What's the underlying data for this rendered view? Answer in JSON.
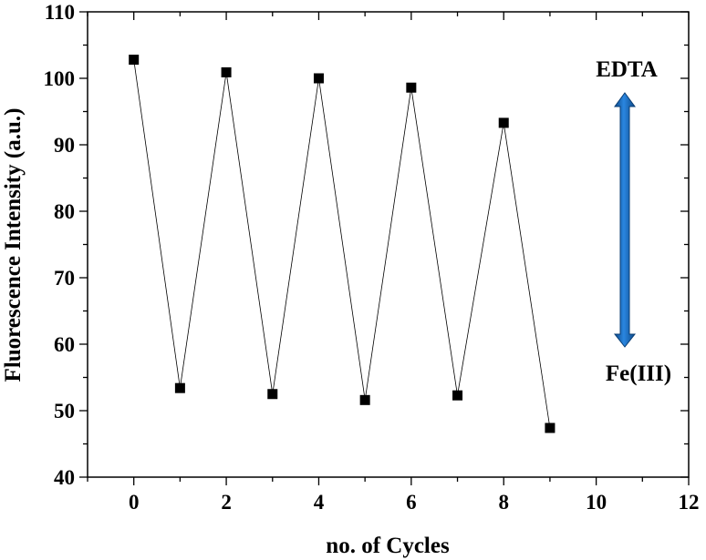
{
  "chart_data": {
    "type": "scatter",
    "title": "",
    "xlabel": "no. of Cycles",
    "ylabel": "Fluorescence Intensity (a.u.)",
    "xlim": [
      -1,
      12
    ],
    "ylim": [
      40,
      110
    ],
    "x_ticks": [
      0,
      2,
      4,
      6,
      8,
      10,
      12
    ],
    "y_ticks": [
      40,
      50,
      60,
      70,
      80,
      90,
      100,
      110
    ],
    "grid": false,
    "legend": "none",
    "marker": "square",
    "connected": true,
    "series": [
      {
        "x": [
          0,
          1,
          2,
          3,
          4,
          5,
          6,
          7,
          8,
          9
        ],
        "y": [
          102.8,
          53.4,
          100.9,
          52.5,
          100.0,
          51.6,
          98.6,
          52.3,
          93.3,
          47.4
        ]
      }
    ],
    "annotations": {
      "top_label": "EDTA",
      "bottom_label": "Fe(III)",
      "arrow_color": "#1f6fc0"
    }
  }
}
